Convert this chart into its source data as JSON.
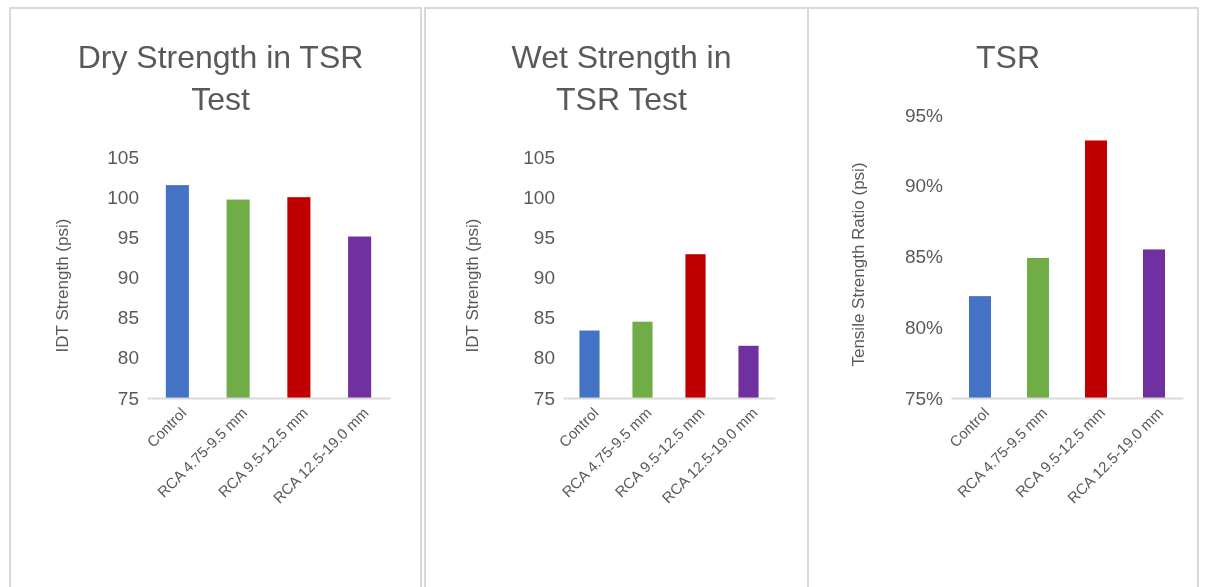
{
  "chart_data": [
    {
      "type": "bar",
      "title": "Dry Strength in TSR Test",
      "ylabel": "IDT Strength (psi)",
      "categories": [
        "Control",
        "RCA 4.75-9.5 mm",
        "RCA 9.5-12.5 mm",
        "RCA 12.5-19.0 mm"
      ],
      "values": [
        101.5,
        99.7,
        100,
        95.1
      ],
      "colors": [
        "#4472c4",
        "#70ad47",
        "#c00000",
        "#7030a0"
      ],
      "ylim": [
        75,
        105
      ],
      "yticks": [
        75,
        80,
        85,
        90,
        95,
        100,
        105
      ]
    },
    {
      "type": "bar",
      "title": "Wet Strength in TSR Test",
      "ylabel": "IDT Strength (psi)",
      "categories": [
        "Control",
        "RCA 4.75-9.5 mm",
        "RCA 9.5-12.5 mm",
        "RCA 12.5-19.0 mm"
      ],
      "values": [
        83.4,
        84.5,
        92.9,
        81.5
      ],
      "colors": [
        "#4472c4",
        "#70ad47",
        "#c00000",
        "#7030a0"
      ],
      "ylim": [
        75,
        105
      ],
      "yticks": [
        75,
        80,
        85,
        90,
        95,
        100,
        105
      ]
    },
    {
      "type": "bar",
      "title": "TSR",
      "ylabel": "Tensile Strength Ratio (psi)",
      "categories": [
        "Control",
        "RCA 4.75-9.5 mm",
        "RCA 9.5-12.5 mm",
        "RCA 12.5-19.0 mm"
      ],
      "values": [
        82.2,
        84.9,
        93.2,
        85.5
      ],
      "colors": [
        "#4472c4",
        "#70ad47",
        "#c00000",
        "#7030a0"
      ],
      "ylim": [
        75,
        95
      ],
      "yticks": [
        {
          "value": 75,
          "label": "75%"
        },
        {
          "value": 80,
          "label": "80%"
        },
        {
          "value": 85,
          "label": "85%"
        },
        {
          "value": 90,
          "label": "90%"
        },
        {
          "value": 95,
          "label": "95%"
        }
      ]
    }
  ]
}
